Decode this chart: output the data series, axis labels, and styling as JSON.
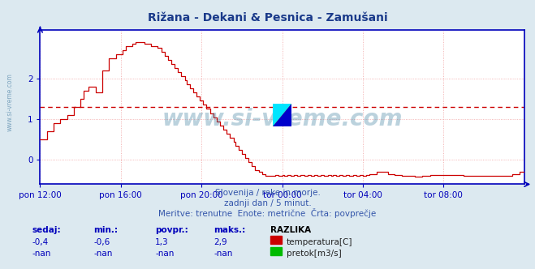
{
  "title": "Rižana - Dekani & Pesnica - Zamušani",
  "title_color": "#1a3a8a",
  "bg_color": "#dce9f0",
  "plot_bg_color": "#ffffff",
  "grid_color": "#f0a0a0",
  "axis_color": "#0000bb",
  "line_color": "#cc0000",
  "avg_line_color": "#cc0000",
  "avg_value": 1.3,
  "ylim": [
    -0.6,
    3.2
  ],
  "yticks": [
    0,
    1,
    2
  ],
  "xtick_positions": [
    0,
    48,
    96,
    144,
    192,
    240
  ],
  "xtick_labels": [
    "pon 12:00",
    "pon 16:00",
    "pon 20:00",
    "tor 00:00",
    "tor 04:00",
    "tor 08:00"
  ],
  "subtitle1": "Slovenija / reke in morje.",
  "subtitle2": "zadnji dan / 5 minut.",
  "subtitle3": "Meritve: trenutne  Enote: metrične  Črta: povprečje",
  "subtitle_color": "#3355aa",
  "table_header": [
    "sedaj:",
    "min.:",
    "povpr.:",
    "maks.:",
    "RAZLIKA"
  ],
  "table_row1": [
    "-0,4",
    "-0,6",
    "1,3",
    "2,9"
  ],
  "table_row2": [
    "-nan",
    "-nan",
    "-nan",
    "-nan"
  ],
  "label1": "temperatura[C]",
  "label2": "pretok[m3/s]",
  "color1": "#cc0000",
  "color2": "#00bb00",
  "watermark": "www.si-vreme.com",
  "watermark_color": "#3d7fa0",
  "watermark_alpha": 0.35,
  "side_watermark_color": "#5588aa",
  "curve": [
    0.5,
    0.5,
    0.7,
    0.7,
    0.9,
    0.9,
    1.0,
    1.0,
    1.1,
    1.1,
    1.3,
    1.3,
    1.5,
    1.7,
    1.7,
    1.8,
    1.8,
    1.65,
    1.65,
    2.2,
    2.2,
    2.5,
    2.5,
    2.6,
    2.6,
    2.7,
    2.8,
    2.8,
    2.85,
    2.9,
    2.9,
    2.9,
    2.85,
    2.85,
    2.8,
    2.8,
    2.75,
    2.65,
    2.55,
    2.45,
    2.35,
    2.25,
    2.15,
    2.05,
    1.95,
    1.85,
    1.75,
    1.65,
    1.55,
    1.45,
    1.35,
    1.25,
    1.15,
    1.05,
    0.95,
    0.85,
    0.75,
    0.65,
    0.55,
    0.45,
    0.35,
    0.25,
    0.15,
    0.05,
    -0.05,
    -0.15,
    -0.25,
    -0.3,
    -0.35,
    -0.4,
    -0.4,
    -0.4,
    -0.38,
    -0.4,
    -0.38,
    -0.4,
    -0.38,
    -0.4,
    -0.38,
    -0.4,
    -0.38,
    -0.4,
    -0.38,
    -0.4,
    -0.38,
    -0.4,
    -0.38,
    -0.4,
    -0.38,
    -0.4,
    -0.38,
    -0.4,
    -0.38,
    -0.4,
    -0.38,
    -0.4,
    -0.38,
    -0.4,
    -0.38,
    -0.4,
    -0.38,
    -0.35,
    -0.35,
    -0.3,
    -0.3,
    -0.3,
    -0.3,
    -0.35,
    -0.35,
    -0.38,
    -0.38,
    -0.4,
    -0.4,
    -0.4,
    -0.4,
    -0.42,
    -0.42,
    -0.4,
    -0.4,
    -0.4,
    -0.38,
    -0.38,
    -0.38,
    -0.38,
    -0.38,
    -0.38,
    -0.38,
    -0.38,
    -0.38,
    -0.38,
    -0.4,
    -0.4,
    -0.4,
    -0.4,
    -0.4,
    -0.4,
    -0.4,
    -0.4,
    -0.4,
    -0.4,
    -0.4,
    -0.4,
    -0.4,
    -0.4,
    -0.4,
    -0.35,
    -0.35,
    -0.3,
    -0.3,
    -0.3
  ]
}
